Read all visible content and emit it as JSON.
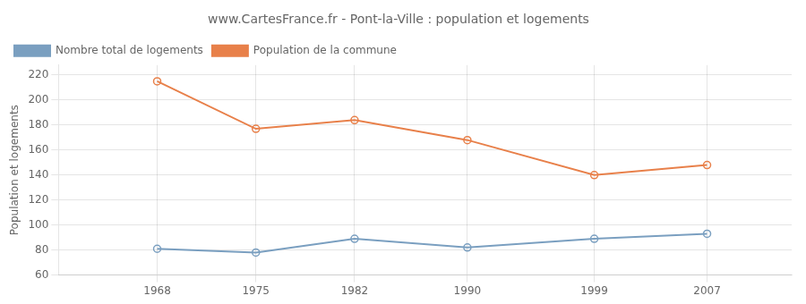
{
  "chart_data": {
    "type": "line",
    "title": "www.CartesFrance.fr - Pont-la-Ville : population et logements",
    "ylabel": "Population et logements",
    "x": [
      1968,
      1975,
      1982,
      1990,
      1999,
      2007
    ],
    "series": [
      {
        "name": "Nombre total de logements",
        "color": "#7a9fc0",
        "marker": "circle",
        "values": [
          81,
          78,
          89,
          82,
          89,
          93
        ]
      },
      {
        "name": "Population de la commune",
        "color": "#e8804a",
        "marker": "circle",
        "values": [
          215,
          177,
          184,
          168,
          140,
          148
        ]
      }
    ],
    "xlim": [
      1961,
      2013
    ],
    "xticks": [
      1968,
      1975,
      1982,
      1990,
      1999,
      2007
    ],
    "ylim": [
      60,
      228
    ],
    "yticks": [
      60,
      80,
      100,
      120,
      140,
      160,
      180,
      200,
      220
    ],
    "grid": true,
    "legend": "upper left"
  }
}
